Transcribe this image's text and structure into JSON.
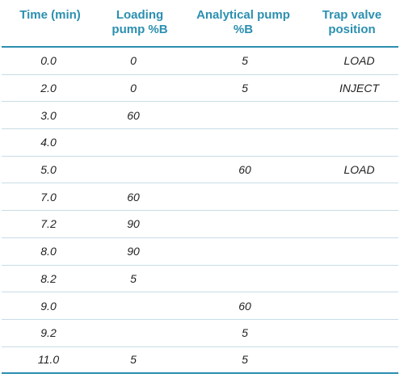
{
  "table": {
    "headers": [
      "Time (min)",
      "Loading\npump %B",
      "Analytical pump\n%B",
      "Trap valve\nposition"
    ],
    "rows": [
      [
        "0.0",
        "0",
        "5",
        "LOAD"
      ],
      [
        "2.0",
        "0",
        "5",
        "INJECT"
      ],
      [
        "3.0",
        "60",
        "",
        ""
      ],
      [
        "4.0",
        "",
        "",
        ""
      ],
      [
        "5.0",
        "",
        "60",
        "LOAD"
      ],
      [
        "7.0",
        "60",
        "",
        ""
      ],
      [
        "7.2",
        "90",
        "",
        ""
      ],
      [
        "8.0",
        "90",
        "",
        ""
      ],
      [
        "8.2",
        "5",
        "",
        ""
      ],
      [
        "9.0",
        "",
        "60",
        ""
      ],
      [
        "9.2",
        "",
        "5",
        ""
      ],
      [
        "11.0",
        "5",
        "5",
        ""
      ]
    ]
  }
}
